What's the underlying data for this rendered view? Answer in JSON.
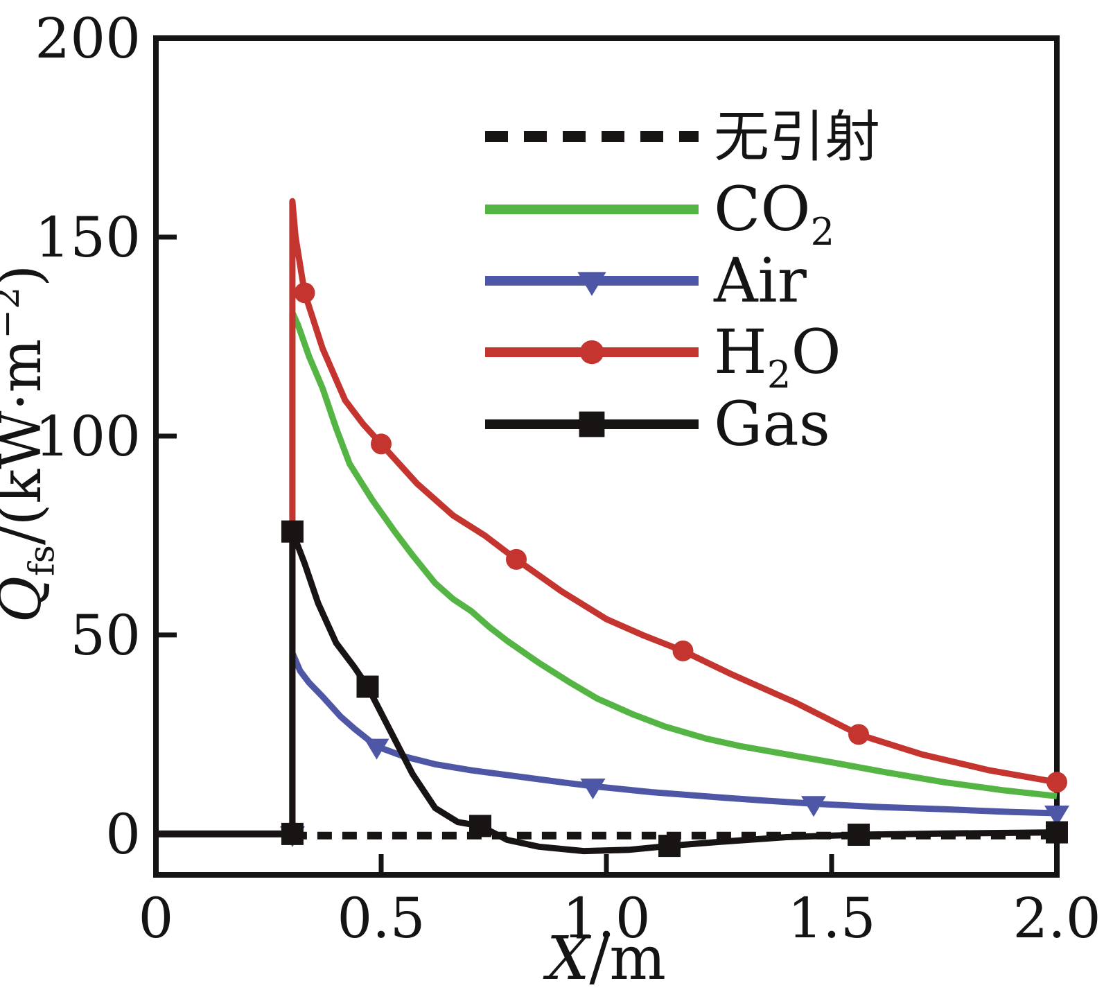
{
  "page": {
    "background": "#ffffff"
  },
  "chart_data": {
    "type": "line",
    "title": "",
    "xlabel": "X/m",
    "ylabel": "Qfs/(kW·m−2)",
    "xlabel_parts": [
      {
        "t": "X",
        "italic": true
      },
      {
        "t": "/m"
      }
    ],
    "ylabel_parts": [
      {
        "t": "Q",
        "italic": true
      },
      {
        "t": "fs",
        "sub": true
      },
      {
        "t": "/(kW·m"
      },
      {
        "t": "−2",
        "sup": true
      },
      {
        "t": ")"
      }
    ],
    "xlim": [
      0,
      2.0
    ],
    "ylim": [
      -10.3,
      200
    ],
    "x_ticks": {
      "values": [
        0,
        0.5,
        1.0,
        1.5,
        2.0
      ],
      "labels": [
        "0",
        "0.5",
        "1.0",
        "1.5",
        "2.0"
      ]
    },
    "y_ticks": {
      "values": [
        0,
        50,
        100,
        150,
        200
      ],
      "labels": [
        "0",
        "50",
        "100",
        "150",
        "200"
      ]
    },
    "grid": false,
    "frame": true,
    "legend_position": "inside upper right",
    "legend": [
      {
        "key": "no_ejection",
        "label": "无引射",
        "label_parts": [
          {
            "t": "无引射"
          }
        ],
        "line": "dashed",
        "marker": "none",
        "color": "#181414",
        "cjk": true
      },
      {
        "key": "co2",
        "label": "CO₂",
        "label_parts": [
          {
            "t": "CO"
          },
          {
            "t": "2",
            "sub": true
          }
        ],
        "line": "solid",
        "marker": "none",
        "color": "#54b545"
      },
      {
        "key": "air",
        "label": "Air",
        "label_parts": [
          {
            "t": "Air"
          }
        ],
        "line": "solid",
        "marker": "triangle-down",
        "color": "#4e57a5"
      },
      {
        "key": "h2o",
        "label": "H₂O",
        "label_parts": [
          {
            "t": "H"
          },
          {
            "t": "2",
            "sub": true
          },
          {
            "t": "O"
          }
        ],
        "line": "solid",
        "marker": "circle",
        "color": "#c5352f"
      },
      {
        "key": "gas",
        "label": "Gas",
        "label_parts": [
          {
            "t": "Gas"
          }
        ],
        "line": "solid",
        "marker": "square",
        "color": "#181414"
      }
    ],
    "series": [
      {
        "key": "baseline_pre_nozzle",
        "name": "baseline before nozzle",
        "color": "#181414",
        "style": "solid",
        "width": 10,
        "marker": "none",
        "in_legend": false,
        "points": [
          [
            0,
            0
          ],
          [
            0.303,
            0
          ]
        ]
      },
      {
        "key": "no_ejection",
        "name": "无引射",
        "color": "#181414",
        "style": "dashed",
        "width": 11,
        "marker": "none",
        "in_legend": true,
        "points": [
          [
            0.303,
            -0.4
          ],
          [
            2.0,
            -0.4
          ]
        ]
      },
      {
        "key": "co2",
        "name": "CO₂",
        "color": "#54b545",
        "style": "solid",
        "width": 9,
        "marker": "none",
        "in_legend": true,
        "points": [
          [
            0.303,
            0
          ],
          [
            0.303,
            131
          ],
          [
            0.315,
            128
          ],
          [
            0.34,
            120
          ],
          [
            0.37,
            112
          ],
          [
            0.4,
            102
          ],
          [
            0.43,
            93
          ],
          [
            0.48,
            84
          ],
          [
            0.53,
            76
          ],
          [
            0.57,
            70
          ],
          [
            0.62,
            63
          ],
          [
            0.66,
            59
          ],
          [
            0.7,
            56
          ],
          [
            0.74,
            52
          ],
          [
            0.78,
            48.5
          ],
          [
            0.85,
            43
          ],
          [
            0.92,
            38
          ],
          [
            0.98,
            34
          ],
          [
            1.06,
            30
          ],
          [
            1.13,
            27
          ],
          [
            1.22,
            24
          ],
          [
            1.3,
            22
          ],
          [
            1.4,
            20
          ],
          [
            1.5,
            18
          ],
          [
            1.62,
            15.5
          ],
          [
            1.75,
            13
          ],
          [
            1.88,
            11
          ],
          [
            2.0,
            9.5
          ]
        ],
        "marker_points": []
      },
      {
        "key": "air",
        "name": "Air",
        "color": "#4e57a5",
        "style": "solid",
        "width": 9,
        "marker": "triangle-down",
        "in_legend": true,
        "points": [
          [
            0.303,
            0
          ],
          [
            0.303,
            45.5
          ],
          [
            0.32,
            41
          ],
          [
            0.34,
            38
          ],
          [
            0.37,
            34.5
          ],
          [
            0.41,
            29.5
          ],
          [
            0.44,
            26.5
          ],
          [
            0.49,
            22
          ],
          [
            0.55,
            19.5
          ],
          [
            0.62,
            17.5
          ],
          [
            0.7,
            16
          ],
          [
            0.8,
            14.5
          ],
          [
            0.9,
            13
          ],
          [
            0.97,
            12
          ],
          [
            1.1,
            10.5
          ],
          [
            1.25,
            9.2
          ],
          [
            1.35,
            8.4
          ],
          [
            1.46,
            7.6
          ],
          [
            1.6,
            6.8
          ],
          [
            1.75,
            6.2
          ],
          [
            1.9,
            5.5
          ],
          [
            2.0,
            5.2
          ]
        ],
        "marker_points": [
          [
            0.303,
            0
          ],
          [
            0.49,
            22
          ],
          [
            0.97,
            12
          ],
          [
            1.46,
            7.6
          ],
          [
            2.0,
            5.2
          ]
        ]
      },
      {
        "key": "h2o",
        "name": "H₂O",
        "color": "#c5352f",
        "style": "solid",
        "width": 9,
        "marker": "circle",
        "in_legend": true,
        "points": [
          [
            0.303,
            0
          ],
          [
            0.303,
            159
          ],
          [
            0.31,
            150
          ],
          [
            0.32,
            143
          ],
          [
            0.33,
            136
          ],
          [
            0.37,
            122
          ],
          [
            0.42,
            109
          ],
          [
            0.46,
            103
          ],
          [
            0.5,
            98
          ],
          [
            0.58,
            88
          ],
          [
            0.66,
            80
          ],
          [
            0.73,
            75
          ],
          [
            0.8,
            69
          ],
          [
            0.9,
            61
          ],
          [
            1.0,
            54
          ],
          [
            1.08,
            50
          ],
          [
            1.17,
            46
          ],
          [
            1.28,
            40
          ],
          [
            1.42,
            33
          ],
          [
            1.56,
            25
          ],
          [
            1.7,
            20
          ],
          [
            1.85,
            16
          ],
          [
            2.0,
            13
          ]
        ],
        "marker_points": [
          [
            0.303,
            0
          ],
          [
            0.33,
            136
          ],
          [
            0.5,
            98
          ],
          [
            0.8,
            69
          ],
          [
            1.17,
            46
          ],
          [
            1.56,
            25
          ],
          [
            2.0,
            13
          ]
        ]
      },
      {
        "key": "gas",
        "name": "Gas",
        "color": "#181414",
        "style": "solid",
        "width": 9,
        "marker": "square",
        "in_legend": true,
        "points": [
          [
            0.303,
            0
          ],
          [
            0.303,
            76
          ],
          [
            0.33,
            68
          ],
          [
            0.36,
            58
          ],
          [
            0.4,
            48
          ],
          [
            0.44,
            42
          ],
          [
            0.47,
            37
          ],
          [
            0.52,
            26
          ],
          [
            0.57,
            15
          ],
          [
            0.62,
            6.5
          ],
          [
            0.67,
            3
          ],
          [
            0.72,
            2
          ],
          [
            0.78,
            -1.5
          ],
          [
            0.85,
            -3.2
          ],
          [
            0.95,
            -4.3
          ],
          [
            1.05,
            -4
          ],
          [
            1.14,
            -3
          ],
          [
            1.25,
            -2
          ],
          [
            1.4,
            -0.8
          ],
          [
            1.56,
            -0.2
          ],
          [
            1.75,
            0.1
          ],
          [
            2.0,
            0.4
          ]
        ],
        "marker_points": [
          [
            0.303,
            0
          ],
          [
            0.303,
            76
          ],
          [
            0.47,
            37
          ],
          [
            0.72,
            2
          ],
          [
            1.14,
            -3
          ],
          [
            1.56,
            -0.2
          ],
          [
            2.0,
            0.4
          ]
        ]
      }
    ]
  }
}
